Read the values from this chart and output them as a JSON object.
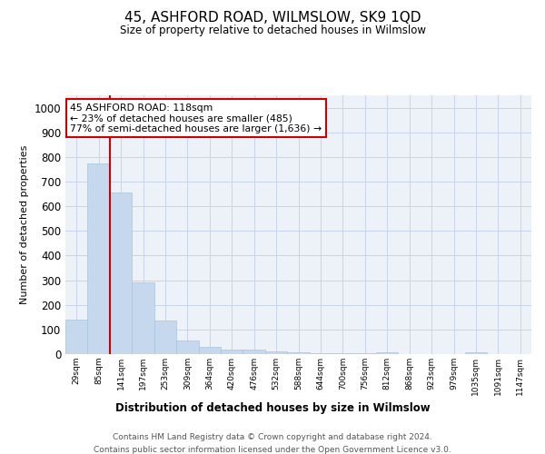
{
  "title": "45, ASHFORD ROAD, WILMSLOW, SK9 1QD",
  "subtitle": "Size of property relative to detached houses in Wilmslow",
  "xlabel": "Distribution of detached houses by size in Wilmslow",
  "ylabel": "Number of detached properties",
  "bar_color": "#c5d8ed",
  "bar_edge_color": "#a8c4dc",
  "grid_color": "#c8d4e8",
  "background_color": "#edf2f9",
  "categories": [
    "29sqm",
    "85sqm",
    "141sqm",
    "197sqm",
    "253sqm",
    "309sqm",
    "364sqm",
    "420sqm",
    "476sqm",
    "532sqm",
    "588sqm",
    "644sqm",
    "700sqm",
    "756sqm",
    "812sqm",
    "868sqm",
    "923sqm",
    "979sqm",
    "1035sqm",
    "1091sqm",
    "1147sqm"
  ],
  "values": [
    140,
    775,
    655,
    290,
    137,
    55,
    28,
    18,
    18,
    12,
    7,
    5,
    5,
    5,
    7,
    1,
    0,
    0,
    8,
    0,
    0
  ],
  "ylim": [
    0,
    1050
  ],
  "yticks": [
    0,
    100,
    200,
    300,
    400,
    500,
    600,
    700,
    800,
    900,
    1000
  ],
  "property_line_color": "#cc0000",
  "annotation_text": "45 ASHFORD ROAD: 118sqm\n← 23% of detached houses are smaller (485)\n77% of semi-detached houses are larger (1,636) →",
  "annotation_box_color": "#ffffff",
  "annotation_box_edge": "#cc0000",
  "footer_line1": "Contains HM Land Registry data © Crown copyright and database right 2024.",
  "footer_line2": "Contains public sector information licensed under the Open Government Licence v3.0."
}
